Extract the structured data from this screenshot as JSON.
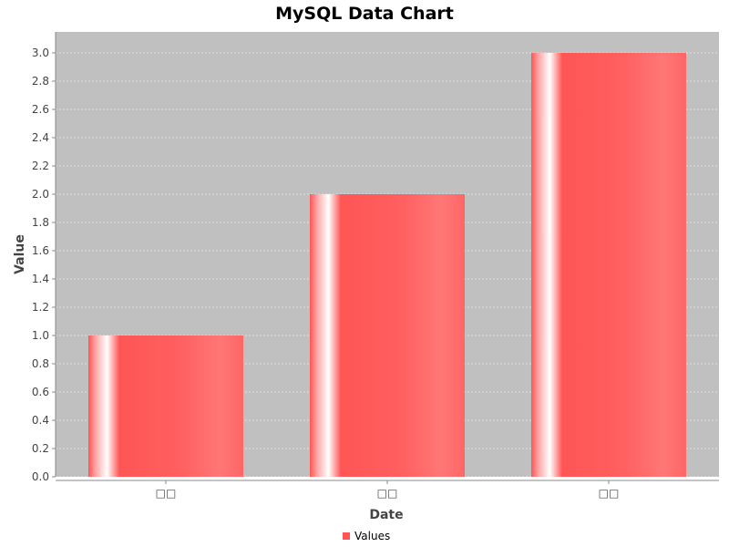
{
  "chart_data": {
    "type": "bar",
    "title": "MySQL Data Chart",
    "xlabel": "Date",
    "ylabel": "Value",
    "categories": [
      "□□",
      "□□",
      "□□"
    ],
    "series": [
      {
        "name": "Values",
        "values": [
          1.0,
          2.0,
          3.0
        ]
      }
    ],
    "ylim": [
      0,
      3.15
    ],
    "yticks": [
      "0.0",
      "0.2",
      "0.4",
      "0.6",
      "0.8",
      "1.0",
      "1.2",
      "1.4",
      "1.6",
      "1.8",
      "2.0",
      "2.2",
      "2.4",
      "2.6",
      "2.8",
      "3.0"
    ],
    "grid": true,
    "legend": "bottom-center",
    "colors": {
      "bar": "#ff5555",
      "plot_background": "#c0c0c0",
      "grid": "#ffffff"
    }
  }
}
